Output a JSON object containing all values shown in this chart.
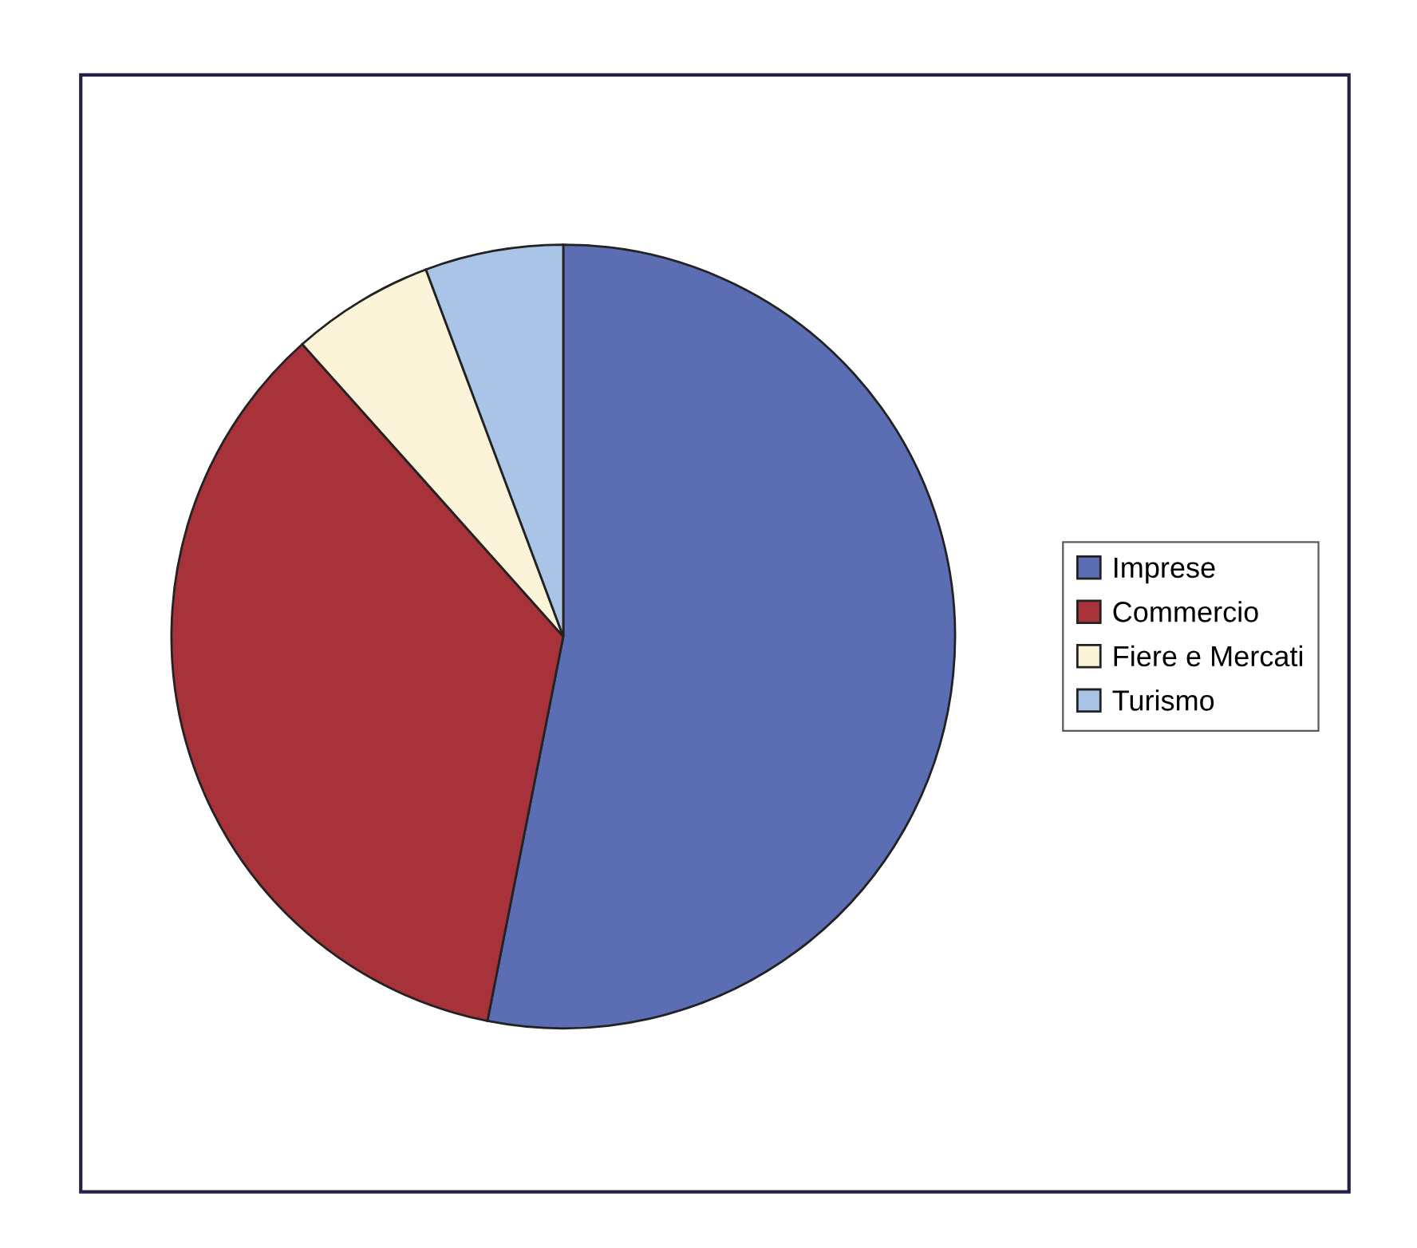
{
  "chart_data": {
    "type": "pie",
    "categories": [
      "Imprese",
      "Commercio",
      "Fiere e Mercati",
      "Turismo"
    ],
    "values": [
      53.1,
      35.3,
      5.9,
      5.7
    ],
    "colors": [
      "#5b6db3",
      "#a8323a",
      "#fbf4d8",
      "#a9c4e6"
    ],
    "legend": "right"
  }
}
